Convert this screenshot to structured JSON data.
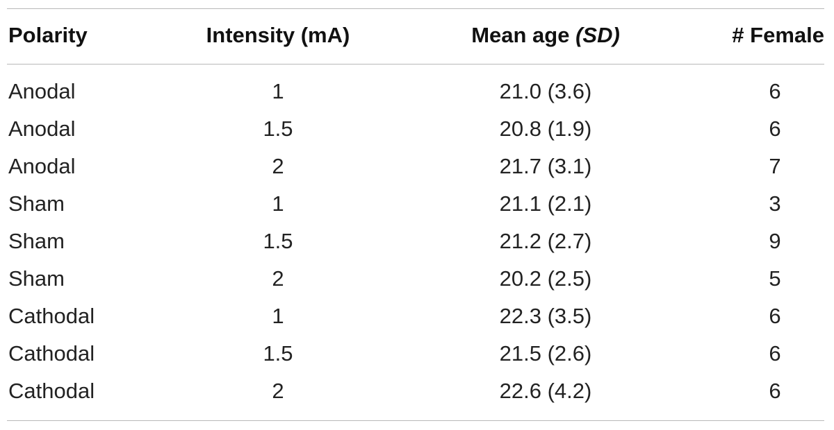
{
  "table": {
    "headers": {
      "polarity": "Polarity",
      "intensity": "Intensity (mA)",
      "mean_age": "Mean age ",
      "mean_age_sd": "(SD)",
      "female": "# Female"
    },
    "rows": [
      {
        "polarity": "Anodal",
        "intensity": "1",
        "mean_age": "21.0 (3.6)",
        "female": "6"
      },
      {
        "polarity": "Anodal",
        "intensity": "1.5",
        "mean_age": "20.8 (1.9)",
        "female": "6"
      },
      {
        "polarity": "Anodal",
        "intensity": "2",
        "mean_age": "21.7 (3.1)",
        "female": "7"
      },
      {
        "polarity": "Sham",
        "intensity": "1",
        "mean_age": "21.1 (2.1)",
        "female": "3"
      },
      {
        "polarity": "Sham",
        "intensity": "1.5",
        "mean_age": "21.2 (2.7)",
        "female": "9"
      },
      {
        "polarity": "Sham",
        "intensity": "2",
        "mean_age": "20.2 (2.5)",
        "female": "5"
      },
      {
        "polarity": "Cathodal",
        "intensity": "1",
        "mean_age": "22.3 (3.5)",
        "female": "6"
      },
      {
        "polarity": "Cathodal",
        "intensity": "1.5",
        "mean_age": "21.5 (2.6)",
        "female": "6"
      },
      {
        "polarity": "Cathodal",
        "intensity": "2",
        "mean_age": "22.6 (4.2)",
        "female": "6"
      }
    ]
  }
}
